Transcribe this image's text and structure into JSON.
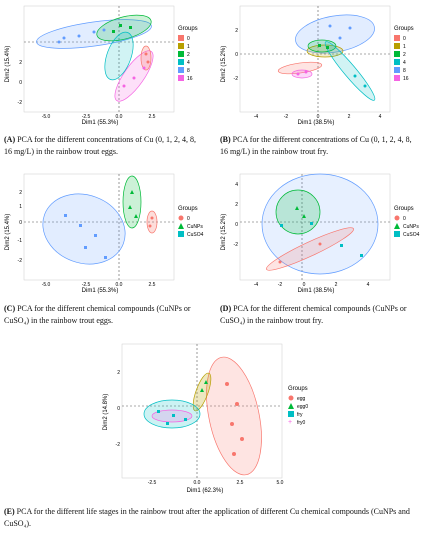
{
  "panels": [
    {
      "id": "A",
      "caption_label": "(A)",
      "caption_text": "PCA for the different concentrations of Cu (0, 1, 2, 4, 8, 16 mg/L) in the rainbow trout eggs.",
      "xlabel": "Dim1 (55.3%)",
      "ylabel": "Dim2 (15.4%)",
      "legend_title": "Groups",
      "legend": [
        "0",
        "1",
        "2",
        "4",
        "8",
        "16"
      ],
      "xticks": [
        "-5.0",
        "-2.5",
        "0.0",
        "2.5"
      ],
      "yticks": [
        "2",
        "0",
        "-2"
      ]
    },
    {
      "id": "B",
      "caption_label": "(B)",
      "caption_text": "PCA for the different concentrations of Cu (0, 1, 2, 4, 8, 16 mg/L) in the rainbow trout fry.",
      "xlabel": "Dim1 (38.5%)",
      "ylabel": "Dim2 (15.2%)",
      "legend_title": "Groups",
      "legend": [
        "0",
        "1",
        "2",
        "4",
        "8",
        "16"
      ],
      "xticks": [
        "-4",
        "-2",
        "0",
        "2",
        "4"
      ],
      "yticks": [
        "2",
        "0",
        "-2"
      ]
    },
    {
      "id": "C",
      "caption_label": "(C)",
      "caption_text": "PCA for the different chemical compounds (CuNPs or CuSO₄) in the rainbow trout eggs.",
      "xlabel": "Dim1 (55.3%)",
      "ylabel": "Dim2 (15.4%)",
      "legend_title": "Groups",
      "legend": [
        "0",
        "CuNPs",
        "CuSO4"
      ],
      "xticks": [
        "-5.0",
        "-2.5",
        "0.0",
        "2.5"
      ],
      "yticks": [
        "2",
        "1",
        "0",
        "-1",
        "-2"
      ]
    },
    {
      "id": "D",
      "caption_label": "(D)",
      "caption_text": "PCA for the different chemical compounds (CuNPs or CuSO₄) in the rainbow trout fry.",
      "xlabel": "Dim1 (38.5%)",
      "ylabel": "Dim2 (15.2%)",
      "legend_title": "Groups",
      "legend": [
        "0",
        "CuNPs",
        "CuSO4"
      ],
      "xticks": [
        "-4",
        "-2",
        "0",
        "2",
        "4"
      ],
      "yticks": [
        "4",
        "2",
        "0",
        "-2"
      ]
    },
    {
      "id": "E",
      "caption_label": "(E)",
      "caption_text": "PCA for the different life stages in the rainbow trout after the application of different Cu chemical compounds (CuNPs and CuSO₄).",
      "xlabel": "Dim1 (62.3%)",
      "ylabel": "Dim2 (14.8%)",
      "legend_title": "Groups",
      "legend": [
        "egg",
        "egg0",
        "fry",
        "fry0"
      ],
      "xticks": [
        "-2.5",
        "0.0",
        "2.5",
        "5.0"
      ],
      "yticks": [
        "2",
        "0",
        "-2"
      ]
    }
  ],
  "colors": {
    "red": "#f8766d",
    "yellow": "#b79f00",
    "green": "#00ba38",
    "teal": "#00bfc4",
    "blue": "#619cff",
    "pink": "#f564e3"
  }
}
